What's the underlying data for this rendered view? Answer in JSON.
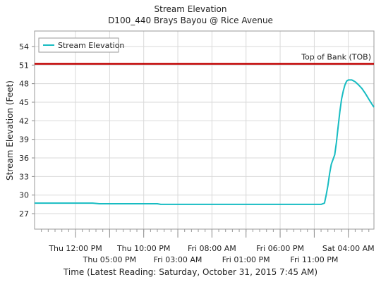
{
  "chart_data": {
    "type": "line",
    "title": "Stream Elevation",
    "subtitle": "D100_440 Brays Bayou @ Rice Avenue",
    "xlabel": "Time (Latest Reading: Saturday, October 31, 2015 7:45 AM)",
    "ylabel": "Stream Elevation (Feet)",
    "ylim": [
      24.5,
      56.5
    ],
    "yticks": [
      27,
      30,
      33,
      36,
      39,
      42,
      45,
      48,
      51,
      54
    ],
    "xlim": [
      "2015-10-29T06:00",
      "2015-10-31T07:45"
    ],
    "xticks": [
      {
        "label": "Thu 12:00 PM",
        "t": "2015-10-29T12:00",
        "row": 1
      },
      {
        "label": "Thu 05:00 PM",
        "t": "2015-10-29T17:00",
        "row": 2
      },
      {
        "label": "Thu 10:00 PM",
        "t": "2015-10-29T22:00",
        "row": 1
      },
      {
        "label": "Fri 03:00 AM",
        "t": "2015-10-30T03:00",
        "row": 2
      },
      {
        "label": "Fri 08:00 AM",
        "t": "2015-10-30T08:00",
        "row": 1
      },
      {
        "label": "Fri 01:00 PM",
        "t": "2015-10-30T13:00",
        "row": 2
      },
      {
        "label": "Fri 06:00 PM",
        "t": "2015-10-30T18:00",
        "row": 1
      },
      {
        "label": "Fri 11:00 PM",
        "t": "2015-10-30T23:00",
        "row": 2
      },
      {
        "label": "Sat 04:00 AM",
        "t": "2015-10-31T04:00",
        "row": 1
      }
    ],
    "grid": true,
    "legend": "top-left",
    "series": [
      {
        "name": "Stream Elevation",
        "color": "#17bcc2",
        "points": [
          {
            "t": "2015-10-29T06:00",
            "y": 28.7
          },
          {
            "t": "2015-10-29T14:30",
            "y": 28.7
          },
          {
            "t": "2015-10-29T15:30",
            "y": 28.6
          },
          {
            "t": "2015-10-30T00:00",
            "y": 28.6
          },
          {
            "t": "2015-10-30T00:30",
            "y": 28.5
          },
          {
            "t": "2015-10-31T00:00",
            "y": 28.5
          },
          {
            "t": "2015-10-31T00:30",
            "y": 28.7
          },
          {
            "t": "2015-10-31T00:45",
            "y": 30.0
          },
          {
            "t": "2015-10-31T01:00",
            "y": 31.5
          },
          {
            "t": "2015-10-31T01:15",
            "y": 33.5
          },
          {
            "t": "2015-10-31T01:30",
            "y": 35.0
          },
          {
            "t": "2015-10-31T02:00",
            "y": 36.5
          },
          {
            "t": "2015-10-31T02:15",
            "y": 38.5
          },
          {
            "t": "2015-10-31T02:30",
            "y": 41.0
          },
          {
            "t": "2015-10-31T02:45",
            "y": 43.5
          },
          {
            "t": "2015-10-31T03:00",
            "y": 45.5
          },
          {
            "t": "2015-10-31T03:15",
            "y": 46.8
          },
          {
            "t": "2015-10-31T03:30",
            "y": 47.8
          },
          {
            "t": "2015-10-31T03:45",
            "y": 48.4
          },
          {
            "t": "2015-10-31T04:00",
            "y": 48.6
          },
          {
            "t": "2015-10-31T04:30",
            "y": 48.6
          },
          {
            "t": "2015-10-31T05:00",
            "y": 48.3
          },
          {
            "t": "2015-10-31T05:30",
            "y": 47.8
          },
          {
            "t": "2015-10-31T06:00",
            "y": 47.2
          },
          {
            "t": "2015-10-31T06:30",
            "y": 46.4
          },
          {
            "t": "2015-10-31T07:00",
            "y": 45.5
          },
          {
            "t": "2015-10-31T07:30",
            "y": 44.6
          },
          {
            "t": "2015-10-31T07:45",
            "y": 44.2
          }
        ]
      }
    ],
    "reference_lines": [
      {
        "name": "Top of Bank (TOB)",
        "y": 51.2,
        "color": "#c00000"
      }
    ]
  }
}
